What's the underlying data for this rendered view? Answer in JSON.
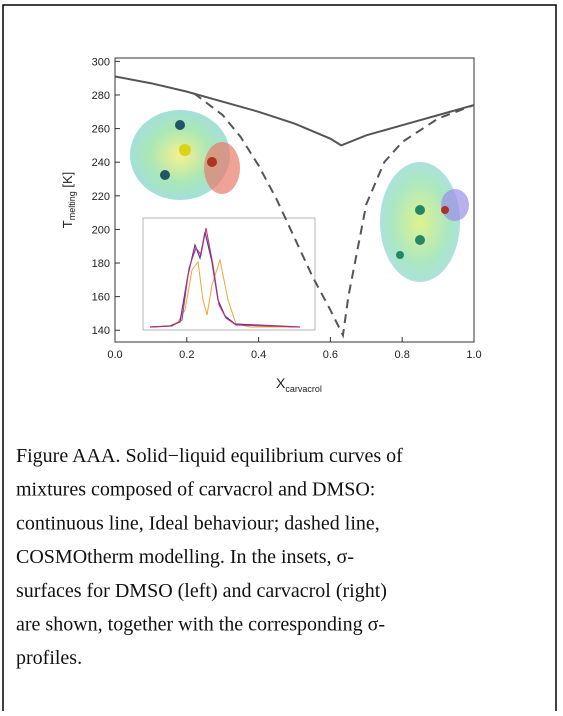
{
  "chart_data": {
    "type": "line",
    "ylabel": {
      "main": "T",
      "sub": "melting",
      "suffix": " [K]"
    },
    "xlabel": {
      "main": "X",
      "sub": "carvacrol"
    },
    "xlim": [
      0,
      1
    ],
    "ylim": [
      133,
      302
    ],
    "xticks": [
      {
        "value": 0,
        "label": "0.0"
      },
      {
        "value": 0.2,
        "label": "0.2"
      },
      {
        "value": 0.4,
        "label": "0.4"
      },
      {
        "value": 0.6,
        "label": "0.6"
      },
      {
        "value": 0.8,
        "label": "0.8"
      },
      {
        "value": 1,
        "label": "1.0"
      }
    ],
    "yticks": [
      140,
      160,
      180,
      200,
      220,
      240,
      260,
      280,
      300
    ],
    "series": [
      {
        "color": "#555555",
        "dash": false,
        "x": [
          0,
          0.1,
          0.2,
          0.3,
          0.4,
          0.5,
          0.6,
          0.63,
          0.7,
          0.8,
          0.9,
          1.0
        ],
        "values": [
          291,
          287,
          282,
          276,
          270,
          263,
          254,
          250,
          256,
          262,
          268,
          274
        ]
      },
      {
        "color": "#555555",
        "dash": true,
        "x": [
          0.22,
          0.3,
          0.35,
          0.4,
          0.45,
          0.5,
          0.55,
          0.6,
          0.635,
          0.65,
          0.7,
          0.75,
          0.8,
          0.9,
          1.0
        ],
        "values": [
          281,
          268,
          255,
          238,
          218,
          195,
          172,
          152,
          137,
          160,
          215,
          240,
          252,
          266,
          274
        ]
      }
    ]
  },
  "caption": [
    "Figure AAA. Solid−liquid equilibrium curves of",
    "mixtures composed of carvacrol and DMSO:",
    "continuous line, Ideal behaviour; dashed line,",
    "COSMOtherm modelling. In the insets, σ-",
    "surfaces for DMSO (left) and carvacrol (right)",
    "are shown, together with the corresponding σ-",
    "profiles."
  ]
}
